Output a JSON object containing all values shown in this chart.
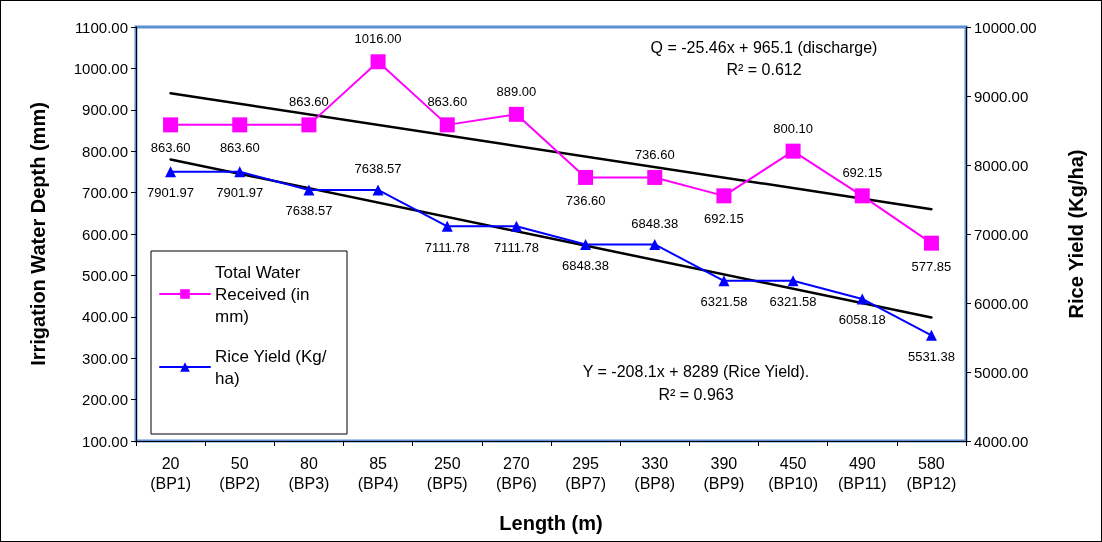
{
  "chart_data": {
    "type": "line",
    "xlabel": "Length (m)",
    "ylabel": "Irrigation Water Depth (mm)",
    "y2label": "Rice Yield (Kg/ha)",
    "categories": [
      "20 (BP1)",
      "50 (BP2)",
      "80 (BP3)",
      "85 (BP4)",
      "250 (BP5)",
      "270 (BP6)",
      "295 (BP7)",
      "330 (BP8)",
      "390 (BP9)",
      "450 (BP10)",
      "490 (BP11)",
      "580 (BP12)"
    ],
    "series": [
      {
        "name": "Total Water Received (in mm)",
        "color": "#ff00ff",
        "marker": "square",
        "values": [
          863.6,
          863.6,
          863.6,
          1016,
          863.6,
          889,
          736.6,
          736.6,
          692.15,
          800.1,
          692.15,
          577.85
        ],
        "value_labels": [
          "863.60",
          "863.60",
          "863.60",
          "1016.00",
          "863.60",
          "889.00",
          "736.60",
          "736.60",
          "692.15",
          "800.10",
          "692.15",
          "577.85"
        ]
      },
      {
        "name": "Rice Yield (Kg/ha)",
        "color": "#0000ff",
        "marker": "triangle",
        "axis": "y2",
        "values": [
          7901.97,
          7901.97,
          7638.57,
          7638.57,
          7111.78,
          7111.78,
          6848.38,
          6848.38,
          6321.58,
          6321.58,
          6058.18,
          5531.38
        ],
        "value_labels": [
          "7901.97",
          "7901.97",
          "7638.57",
          "7638.57",
          "7111.78",
          "7111.78",
          "6848.38",
          "6848.38",
          "6321.58",
          "6321.58",
          "6058.18",
          "5531.38"
        ]
      },
      {
        "color": "#000000",
        "marker": "none",
        "x": [
          "20 (BP1)",
          "580 (BP12)"
        ],
        "values": [
          940,
          660
        ]
      },
      {
        "color": "#000000",
        "marker": "none",
        "axis": "y2",
        "x": [
          "20 (BP1)",
          "580 (BP12)"
        ],
        "values": [
          8080,
          5790
        ]
      }
    ],
    "ylim": [
      100,
      1100
    ],
    "yticks": [
      {
        "value": 100,
        "label": "100.00"
      },
      {
        "value": 200,
        "label": "200.00"
      },
      {
        "value": 300,
        "label": "300.00"
      },
      {
        "value": 400,
        "label": "400.00"
      },
      {
        "value": 500,
        "label": "500.00"
      },
      {
        "value": 600,
        "label": "600.00"
      },
      {
        "value": 700,
        "label": "700.00"
      },
      {
        "value": 800,
        "label": "800.00"
      },
      {
        "value": 900,
        "label": "900.00"
      },
      {
        "value": 1000,
        "label": "1000.00"
      },
      {
        "value": 1100,
        "label": "1100.00"
      }
    ],
    "y2lim": [
      4000,
      10000
    ],
    "y2ticks": [
      {
        "value": 4000,
        "label": "4000.00"
      },
      {
        "value": 5000,
        "label": "5000.00"
      },
      {
        "value": 6000,
        "label": "6000.00"
      },
      {
        "value": 7000,
        "label": "7000.00"
      },
      {
        "value": 8000,
        "label": "8000.00"
      },
      {
        "value": 9000,
        "label": "9000.00"
      },
      {
        "value": 10000,
        "label": "10000.00"
      }
    ],
    "annotations": [
      "Q = -25.46x + 965.1 (discharge)",
      "R² = 0.612",
      "Y = -208.1x + 8289 (Rice Yield).",
      "R² = 0.963"
    ],
    "legend": "left",
    "grid": false
  }
}
